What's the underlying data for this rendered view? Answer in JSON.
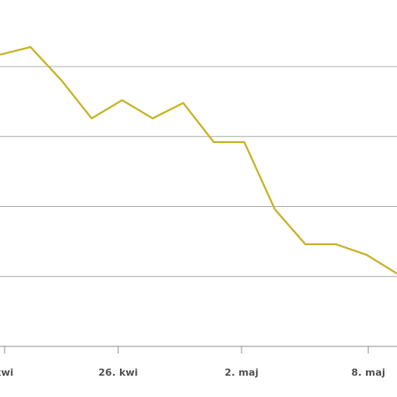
{
  "chart_data": {
    "type": "line",
    "x": [
      0,
      1,
      2,
      3,
      4,
      5,
      6,
      7,
      8,
      9,
      10,
      11,
      12,
      13
    ],
    "series": [
      {
        "color": "#c9b52c",
        "values": [
          4.17,
          4.28,
          3.81,
          3.26,
          3.52,
          3.26,
          3.48,
          2.92,
          2.92,
          1.96,
          1.46,
          1.46,
          1.31,
          1.04
        ]
      }
    ],
    "xlim": [
      0,
      13
    ],
    "xticks": [
      {
        "value": 0.15,
        "label": "kwi"
      },
      {
        "value": 3.87,
        "label": "26. kwi"
      },
      {
        "value": 7.91,
        "label": "2. maj"
      },
      {
        "value": 12.06,
        "label": "8. maj"
      }
    ],
    "ylim": [
      0,
      5
    ],
    "yticks": [
      1,
      2,
      3,
      4
    ],
    "grid": true
  }
}
